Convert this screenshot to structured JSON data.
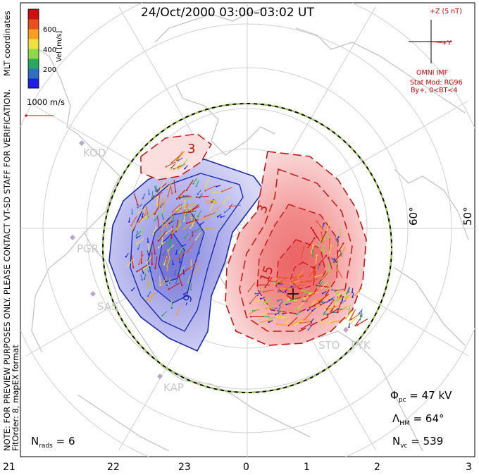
{
  "title": "24/Oct/2000 03:00–03:02 UT",
  "side_note": {
    "line1": "NOTE: FOR PREVIEW PURPOSES ONLY. PLEASE CONTACT VT-SD STAFF FOR VERIFICATION.",
    "line2": "FitOrder: 8, mapEX format",
    "coords": "MLT coordinates"
  },
  "colorbar": {
    "label": "Vel [m/s]",
    "ticks": [
      "600",
      "400",
      "200"
    ],
    "colors": [
      "#1f1fe0",
      "#2f6fc0",
      "#2aa860",
      "#8fd84a",
      "#f0e040",
      "#f5a020",
      "#e85020",
      "#d01010"
    ]
  },
  "scale_vector": "1000 m/s",
  "imf": {
    "z_label": "+Z (5 nT)",
    "y_label": "+Y",
    "source": "OMNI IMF",
    "model": "Stat Mod: RG96",
    "condition": "By+, 0<BT<4"
  },
  "stations": [
    "KOD",
    "PGR",
    "SAS",
    "KAP",
    "STO",
    "PYK"
  ],
  "latitude_labels": [
    "60°",
    "50°"
  ],
  "contour_labels": [
    "3",
    "3",
    "15",
    "-9"
  ],
  "stats": {
    "phi_symbol": "Φ",
    "phi_sub": "pc",
    "phi_value": "= 47 kV",
    "lambda_symbol": "Λ",
    "lambda_sub": "HM",
    "lambda_value": "= 64°",
    "nvc_symbol": "N",
    "nvc_sub": "vc",
    "nvc_value": "= 539",
    "nrads_symbol": "N",
    "nrads_sub": "rads",
    "nrads_value": "= 6"
  },
  "mlt_ticks": [
    "21",
    "22",
    "23",
    "0",
    "1",
    "2",
    "3"
  ]
}
